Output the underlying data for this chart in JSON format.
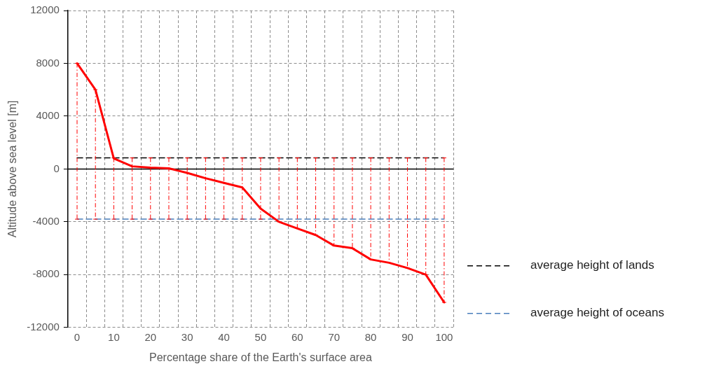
{
  "chart_data": {
    "type": "line",
    "xlabel": "Percentage share of the Earth's surface area",
    "ylabel": "Altitude above sea level [m]",
    "x": [
      0,
      5,
      10,
      15,
      20,
      25,
      30,
      35,
      40,
      45,
      50,
      55,
      60,
      65,
      70,
      75,
      80,
      85,
      90,
      95,
      100
    ],
    "series": [
      {
        "color": "#ff0000",
        "line_style": "solid",
        "values": [
          8000,
          6000,
          800,
          200,
          100,
          50,
          -300,
          -700,
          -1050,
          -1400,
          -3000,
          -4000,
          -4500,
          -5000,
          -5800,
          -6000,
          -6850,
          -7100,
          -7500,
          -8000,
          -10100
        ],
        "errors": [
          [
            -3800,
            8000
          ],
          [
            -3800,
            6000
          ],
          [
            -3800,
            840
          ],
          [
            -3800,
            840
          ],
          [
            -3800,
            840
          ],
          [
            -3800,
            840
          ],
          [
            -3800,
            840
          ],
          [
            -3800,
            840
          ],
          [
            -3800,
            840
          ],
          [
            -3800,
            840
          ],
          [
            -3800,
            840
          ],
          [
            -4000,
            840
          ],
          [
            -4500,
            840
          ],
          [
            -5000,
            840
          ],
          [
            -5800,
            840
          ],
          [
            -6000,
            840
          ],
          [
            -6850,
            840
          ],
          [
            -7100,
            840
          ],
          [
            -7500,
            840
          ],
          [
            -8000,
            840
          ],
          [
            -10100,
            840
          ]
        ]
      },
      {
        "name": "average height of lands",
        "color": "#000000",
        "line_style": "dashed",
        "values": [
          840,
          840,
          840,
          840,
          840,
          840,
          840,
          840,
          840,
          840,
          840,
          840,
          840,
          840,
          840,
          840,
          840,
          840,
          840,
          840,
          840
        ]
      },
      {
        "name": "average height of oceans",
        "color": "#4a7ebb",
        "line_style": "dashed",
        "values": [
          -3800,
          -3800,
          -3800,
          -3800,
          -3800,
          -3800,
          -3800,
          -3800,
          -3800,
          -3800,
          -3800,
          -3800,
          -3800,
          -3800,
          -3800,
          -3800,
          -3800,
          -3800,
          -3800,
          -3800,
          -3800
        ]
      }
    ],
    "xlim": [
      -2.5,
      102.5
    ],
    "xticks": [
      0,
      10,
      20,
      30,
      40,
      50,
      60,
      70,
      80,
      90,
      100,
      {
        "value": 2.5,
        "label": null
      },
      {
        "value": 7.5,
        "label": null
      },
      {
        "value": 12.5,
        "label": null
      },
      {
        "value": 17.5,
        "label": null
      },
      {
        "value": 22.5,
        "label": null
      },
      {
        "value": 27.5,
        "label": null
      },
      {
        "value": 32.5,
        "label": null
      },
      {
        "value": 37.5,
        "label": null
      },
      {
        "value": 42.5,
        "label": null
      },
      {
        "value": 47.5,
        "label": null
      },
      {
        "value": 52.5,
        "label": null
      },
      {
        "value": 57.5,
        "label": null
      },
      {
        "value": 62.5,
        "label": null
      },
      {
        "value": 67.5,
        "label": null
      },
      {
        "value": 72.5,
        "label": null
      },
      {
        "value": 77.5,
        "label": null
      },
      {
        "value": 82.5,
        "label": null
      },
      {
        "value": 87.5,
        "label": null
      },
      {
        "value": 92.5,
        "label": null
      },
      {
        "value": 97.5,
        "label": null
      },
      {
        "value": 102.5,
        "label": null
      }
    ],
    "ylim": [
      -12000,
      12000
    ],
    "yticks": [
      -12000,
      -8000,
      -4000,
      0,
      4000,
      8000,
      12000
    ],
    "grid": true,
    "legend": "right",
    "marker": "none"
  }
}
